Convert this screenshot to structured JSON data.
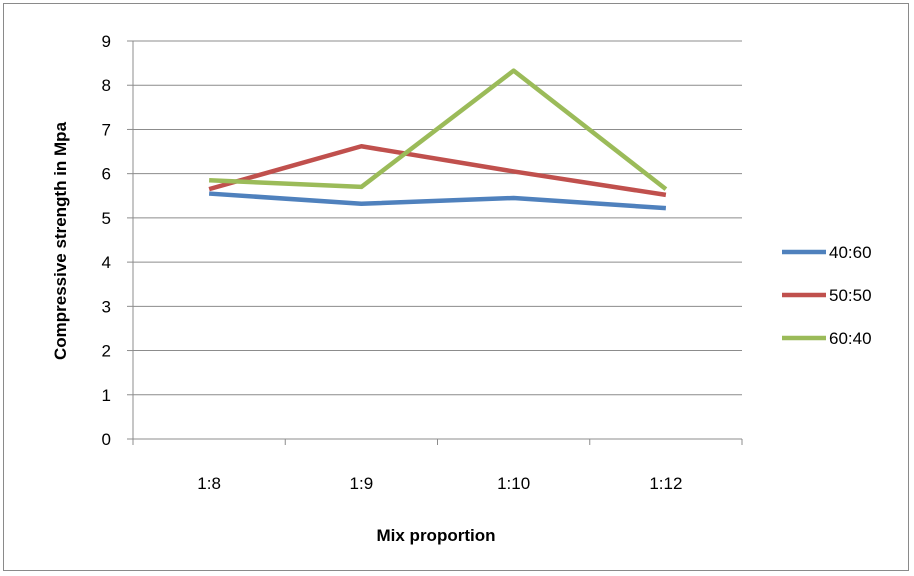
{
  "chart_data": {
    "type": "line",
    "categories": [
      "1:8",
      "1:9",
      "1:10",
      "1:12"
    ],
    "series": [
      {
        "name": "40:60",
        "color": "#4f81bd",
        "values": [
          5.55,
          5.32,
          5.45,
          5.22
        ]
      },
      {
        "name": "50:50",
        "color": "#c0504d",
        "values": [
          5.65,
          6.62,
          6.05,
          5.52
        ]
      },
      {
        "name": "60:40",
        "color": "#9bbb59",
        "values": [
          5.85,
          5.7,
          8.33,
          5.65
        ]
      }
    ],
    "xlabel": "Mix proportion",
    "ylabel": "Compressive strength in Mpa",
    "ylim": [
      0,
      9
    ],
    "yticks": [
      0,
      1,
      2,
      3,
      4,
      5,
      6,
      7,
      8,
      9
    ],
    "grid": true,
    "legend_position": "right"
  }
}
